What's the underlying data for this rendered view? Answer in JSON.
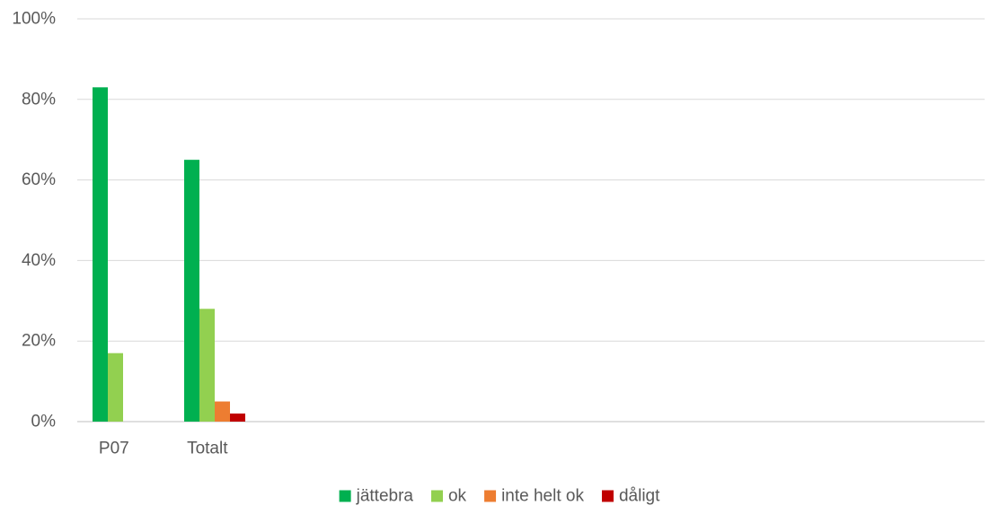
{
  "chart_data": {
    "type": "bar",
    "categories": [
      "P07",
      "Totalt"
    ],
    "series": [
      {
        "name": "jättebra",
        "color": "#00b050",
        "values": [
          83,
          65
        ]
      },
      {
        "name": "ok",
        "color": "#92d050",
        "values": [
          17,
          28
        ]
      },
      {
        "name": "inte helt ok",
        "color": "#ed7d31",
        "values": [
          0,
          5
        ]
      },
      {
        "name": "dåligt",
        "color": "#c00000",
        "values": [
          0,
          2
        ]
      }
    ],
    "ylim": [
      0,
      100
    ],
    "yticks": [
      0,
      20,
      40,
      60,
      80,
      100
    ],
    "ytick_labels": [
      "0%",
      "20%",
      "40%",
      "60%",
      "80%",
      "100%"
    ],
    "grid": true,
    "legend_position": "bottom",
    "title": "",
    "xlabel": "",
    "ylabel": ""
  }
}
